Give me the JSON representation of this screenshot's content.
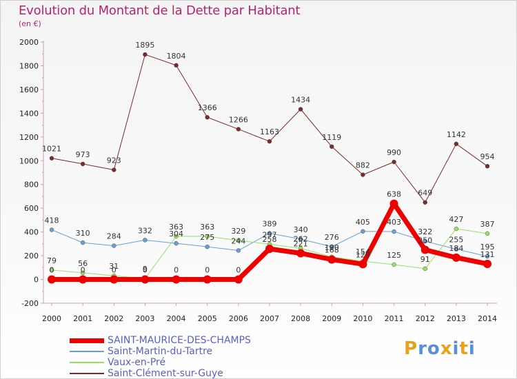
{
  "title": "Evolution du Montant de la Dette par Habitant",
  "subtitle": "(en €)",
  "logo": {
    "text": "Proxiti",
    "letter_colors": [
      "#e8a21a",
      "#5a8ed6",
      "#5a8ed6",
      "#e8a21a",
      "#5a8ed6",
      "#e8a21a",
      "#5a8ed6"
    ]
  },
  "chart_data": {
    "type": "line",
    "x": [
      2000,
      2001,
      2002,
      2003,
      2004,
      2005,
      2006,
      2007,
      2008,
      2009,
      2010,
      2011,
      2012,
      2013,
      2014
    ],
    "ylim": [
      -200,
      2000
    ],
    "yticks": [
      -200,
      0,
      200,
      400,
      600,
      800,
      1000,
      1200,
      1400,
      1600,
      1800,
      2000
    ],
    "xlabel": "",
    "ylabel": "",
    "grid": false,
    "legend_position": "bottom",
    "series": [
      {
        "name": "SAINT-MAURICE-DES-CHAMPS",
        "color": "#ee0000",
        "values": [
          0,
          0,
          0,
          0,
          0,
          0,
          0,
          258,
          221,
          168,
          129,
          638,
          250,
          184,
          131
        ],
        "labels": [
          "0",
          "0",
          "0",
          "0",
          "0",
          "0",
          "0",
          "258",
          "221",
          "168",
          "129",
          "638",
          "250",
          "184",
          "131"
        ]
      },
      {
        "name": "Saint-Martin-du-Tartre",
        "color": "#6a9fd0",
        "values": [
          418,
          310,
          284,
          332,
          304,
          275,
          244,
          389,
          340,
          276,
          405,
          403,
          322,
          255,
          195
        ],
        "labels": [
          "418",
          "310",
          "284",
          "332",
          "304",
          "275",
          "244",
          "389",
          "340",
          "276",
          "405",
          "403",
          "322",
          "255",
          "195"
        ]
      },
      {
        "name": "Vaux-en-Pré",
        "color": "#99dd66",
        "values": [
          79,
          56,
          31,
          9,
          363,
          363,
          329,
          297,
          262,
          190,
          154,
          125,
          91,
          427,
          387
        ],
        "labels": [
          "79",
          "56",
          "31",
          "9",
          "363",
          "363",
          "329",
          "297",
          "262",
          "190",
          "154",
          "125",
          "91",
          "427",
          "387"
        ]
      },
      {
        "name": "Saint-Clément-sur-Guye",
        "color": "#7a2a2a",
        "values": [
          1021,
          973,
          923,
          1895,
          1804,
          1366,
          1266,
          1163,
          1434,
          1119,
          882,
          990,
          649,
          1142,
          954
        ],
        "labels": [
          "1021",
          "973",
          "923",
          "1895",
          "1804",
          "1366",
          "1266",
          "1163",
          "1434",
          "1119",
          "882",
          "990",
          "649",
          "1142",
          "954"
        ]
      }
    ]
  }
}
